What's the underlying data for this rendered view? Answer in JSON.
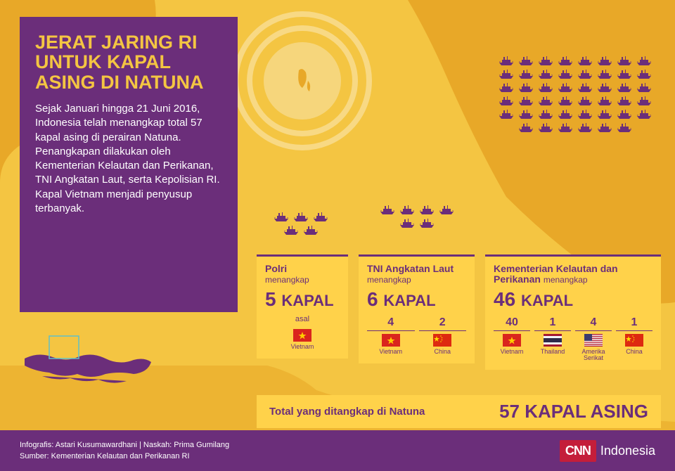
{
  "title": "JERAT JARING RI UNTUK KAPAL ASING DI NATUNA",
  "body": "Sejak Januari hingga 21 Juni 2016, Indonesia telah menangkap total 57 kapal asing di perairan Natuna. Penangkapan dilakukan oleh Kementerian Kelautan dan Perikanan, TNI Angkatan Laut, serta Kepolisian RI. Kapal Vietnam menjadi penyusup terbanyak.",
  "ship_color": "#6b2e7a",
  "stats": [
    {
      "agency": "Polri",
      "verb": "menangkap",
      "count": 5,
      "label": "KAPAL",
      "origins": [
        {
          "n": 5,
          "country": "Vietnam",
          "flag": "vn"
        }
      ],
      "asal": "asal",
      "ships": 5,
      "cols": 3
    },
    {
      "agency": "TNI Angkatan Laut",
      "verb": "menangkap",
      "count": 6,
      "label": "KAPAL",
      "origins": [
        {
          "n": 4,
          "country": "Vietnam",
          "flag": "vn"
        },
        {
          "n": 2,
          "country": "China",
          "flag": "cn"
        }
      ],
      "ships": 6,
      "cols": 4
    },
    {
      "agency": "Kementerian Kelautan dan Perikanan",
      "verb": "menangkap",
      "count": 46,
      "label": "KAPAL",
      "origins": [
        {
          "n": 40,
          "country": "Vietnam",
          "flag": "vn"
        },
        {
          "n": 1,
          "country": "Thailand",
          "flag": "th"
        },
        {
          "n": 4,
          "country": "Amerika Serikat",
          "flag": "us"
        },
        {
          "n": 1,
          "country": "China",
          "flag": "cn"
        }
      ],
      "ships": 46,
      "cols": 8
    }
  ],
  "total": {
    "label": "Total yang ditangkap di Natuna",
    "value": "57 KAPAL ASING"
  },
  "credits": {
    "line1": "Infografis: Astari Kusumawardhani | Naskah: Prima Gumilang",
    "line2": "Sumber: Kementerian Kelautan dan Perikanan RI"
  },
  "logo": {
    "brand": "CNN",
    "region": "Indonesia"
  },
  "flags": {
    "vn": {
      "bg": "#da251d",
      "star": "#ffcd00"
    },
    "cn": {
      "bg": "#de2910",
      "star": "#ffde00"
    },
    "th": {
      "stripes": [
        "#a51931",
        "#f4f5f8",
        "#2d2a4a",
        "#f4f5f8",
        "#a51931"
      ]
    },
    "us": {
      "bg": "#fff",
      "stripe": "#b22234",
      "canton": "#3c3b6e"
    }
  },
  "colors": {
    "bg": "#f4c542",
    "land": "#e8a828",
    "accent": "#6b2e7a",
    "box": "#ffd24a"
  }
}
